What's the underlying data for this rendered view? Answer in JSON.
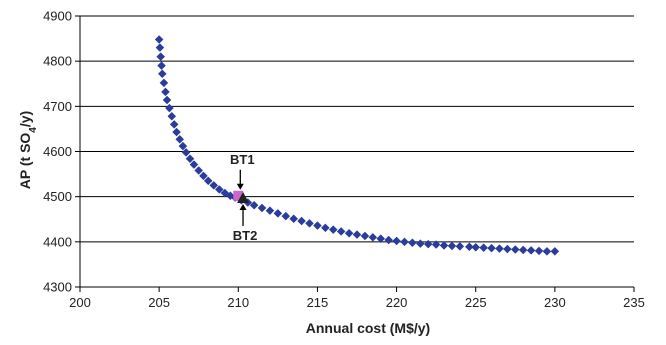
{
  "chart_data": {
    "type": "scatter",
    "title": "",
    "xlabel": "Annual cost (M$/y)",
    "ylabel_main": "AP (t SO",
    "ylabel_sub": "4",
    "ylabel_tail": "/y)",
    "xlim": [
      200,
      235
    ],
    "ylim": [
      4300,
      4900
    ],
    "x_ticks": [
      200,
      205,
      210,
      215,
      220,
      225,
      230,
      235
    ],
    "y_ticks": [
      4300,
      4400,
      4500,
      4600,
      4700,
      4800,
      4900
    ],
    "grid": "horizontal",
    "legend": "none",
    "series": [
      {
        "marker": "diamond",
        "color": "#2a3c9c",
        "points": [
          [
            205.0,
            4848
          ],
          [
            205.05,
            4830
          ],
          [
            205.1,
            4810
          ],
          [
            205.15,
            4790
          ],
          [
            205.2,
            4772
          ],
          [
            205.3,
            4752
          ],
          [
            205.4,
            4732
          ],
          [
            205.5,
            4714
          ],
          [
            205.65,
            4696
          ],
          [
            205.8,
            4678
          ],
          [
            205.95,
            4660
          ],
          [
            206.1,
            4643
          ],
          [
            206.3,
            4627
          ],
          [
            206.5,
            4612
          ],
          [
            206.7,
            4598
          ],
          [
            206.95,
            4584
          ],
          [
            207.2,
            4571
          ],
          [
            207.5,
            4558
          ],
          [
            207.8,
            4546
          ],
          [
            208.1,
            4535
          ],
          [
            208.45,
            4525
          ],
          [
            208.8,
            4516
          ],
          [
            209.15,
            4508
          ],
          [
            209.5,
            4502
          ],
          [
            209.8,
            4498
          ],
          [
            210.2,
            4492
          ],
          [
            210.6,
            4487
          ],
          [
            211.0,
            4481
          ],
          [
            211.5,
            4475
          ],
          [
            212.0,
            4469
          ],
          [
            212.5,
            4463
          ],
          [
            213.0,
            4457
          ],
          [
            213.5,
            4451
          ],
          [
            214.0,
            4446
          ],
          [
            214.5,
            4441
          ],
          [
            215.0,
            4436
          ],
          [
            215.5,
            4431
          ],
          [
            216.0,
            4427
          ],
          [
            216.5,
            4423
          ],
          [
            217.0,
            4419
          ],
          [
            217.5,
            4416
          ],
          [
            218.0,
            4413
          ],
          [
            218.5,
            4410
          ],
          [
            219.0,
            4407
          ],
          [
            219.5,
            4404
          ],
          [
            220.0,
            4402
          ],
          [
            220.5,
            4400
          ],
          [
            221.0,
            4398
          ],
          [
            221.5,
            4396
          ],
          [
            222.0,
            4395
          ],
          [
            222.5,
            4394
          ],
          [
            223.0,
            4392
          ],
          [
            223.5,
            4391
          ],
          [
            224.0,
            4390
          ],
          [
            224.6,
            4389
          ],
          [
            225.0,
            4388
          ],
          [
            225.5,
            4387
          ],
          [
            226.0,
            4386
          ],
          [
            226.5,
            4385
          ],
          [
            227.0,
            4384
          ],
          [
            227.5,
            4383
          ],
          [
            228.0,
            4382
          ],
          [
            228.5,
            4381
          ],
          [
            229.0,
            4380
          ],
          [
            229.5,
            4379
          ],
          [
            230.0,
            4379
          ]
        ]
      }
    ],
    "highlights": [
      {
        "label": "BT1",
        "x": 210.0,
        "y": 4502,
        "marker": "square",
        "color": "#cc66cc"
      },
      {
        "label": "BT2",
        "x": 210.3,
        "y": 4497,
        "marker": "triangle",
        "color": "#222222"
      }
    ],
    "annotations": [
      {
        "text": "BT1",
        "anchor": "BT1",
        "side": "above"
      },
      {
        "text": "BT2",
        "anchor": "BT2",
        "side": "below"
      }
    ]
  }
}
